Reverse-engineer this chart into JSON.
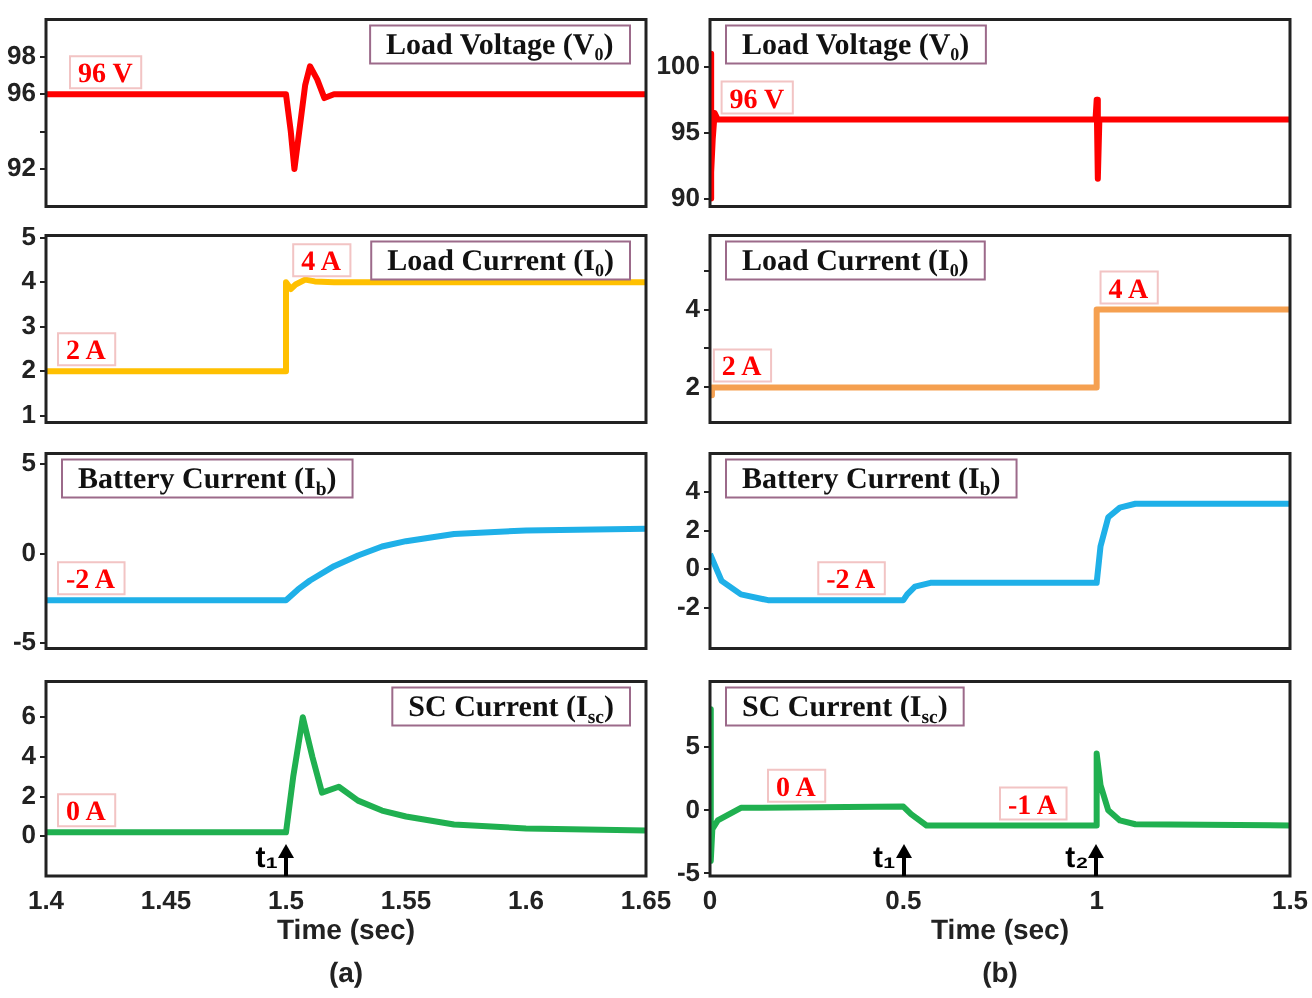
{
  "chart_data": [
    {
      "type": "line",
      "title": "Load Voltage (V₀)",
      "x": [
        1.4,
        1.5,
        1.502,
        1.5035,
        1.505,
        1.508,
        1.51,
        1.513,
        1.516,
        1.52,
        1.525,
        1.65
      ],
      "series": [
        {
          "color": "#ff0000",
          "values": [
            96,
            96,
            94,
            92,
            93.5,
            96.5,
            97.5,
            96.8,
            95.8,
            96,
            96,
            96
          ]
        }
      ],
      "xlim": [
        1.4,
        1.65
      ],
      "xticks": [
        1.4,
        1.45,
        1.5,
        1.55,
        1.6,
        1.65
      ],
      "ylim": [
        90,
        100
      ],
      "yticks": [
        92,
        {
          "value": 94,
          "label": null
        },
        96,
        98
      ],
      "tick_labels": "y",
      "annotations": [
        {
          "text": "96 V",
          "x": 1.41,
          "y": 96
        }
      ]
    },
    {
      "type": "line",
      "title": "Load Voltage (V₀)",
      "x": [
        0,
        0.002,
        0.004,
        0.007,
        0.012,
        0.02,
        0.997,
        1.0,
        1.003,
        1.007,
        1.5
      ],
      "series": [
        {
          "color": "#ff0000",
          "values": [
            90,
            101,
            92,
            94.5,
            96.5,
            96,
            96,
            97.5,
            91.5,
            96,
            96
          ]
        }
      ],
      "xlim": [
        0,
        1.5
      ],
      "xticks": [
        0,
        0.5,
        1,
        1.5
      ],
      "ylim": [
        89.4,
        103.6
      ],
      "yticks": [
        90,
        95,
        100
      ],
      "tick_labels": "y",
      "annotations": [
        {
          "text": "96 V",
          "x": 0.03,
          "y": 96
        }
      ]
    },
    {
      "type": "line",
      "title": "Load Current (I₀)",
      "x": [
        1.4,
        1.5,
        1.5,
        1.502,
        1.504,
        1.508,
        1.512,
        1.52,
        1.65
      ],
      "series": [
        {
          "color": "#ffc000",
          "values": [
            2,
            2,
            4,
            3.85,
            3.95,
            4.06,
            4.02,
            4,
            4
          ]
        }
      ],
      "xlim": [
        1.4,
        1.65
      ],
      "xticks": [
        1.4,
        1.45,
        1.5,
        1.55,
        1.6,
        1.65
      ],
      "ylim": [
        0.85,
        5.05
      ],
      "yticks": [
        1,
        2,
        3,
        4,
        5
      ],
      "tick_labels": "y",
      "annotations": [
        {
          "text": "2 A",
          "x": 1.405,
          "y": 2
        },
        {
          "text": "4 A",
          "x": 1.503,
          "y": 4
        }
      ]
    },
    {
      "type": "line",
      "title": "Load Current (I₀)",
      "x": [
        0,
        0.005,
        1.0,
        1.0,
        1.5
      ],
      "series": [
        {
          "color": "#f5a050",
          "values": [
            1.8,
            2,
            2,
            4,
            4
          ]
        }
      ],
      "xlim": [
        0,
        1.5
      ],
      "xticks": [
        0,
        0.5,
        1,
        1.5
      ],
      "ylim": [
        1.1,
        5.9
      ],
      "yticks": [
        2,
        {
          "value": 3,
          "label": null
        },
        4,
        {
          "value": 5,
          "label": null
        }
      ],
      "tick_labels": "y",
      "annotations": [
        {
          "text": "2 A",
          "x": 0.01,
          "y": 2
        },
        {
          "text": "4 A",
          "x": 1.01,
          "y": 4
        }
      ]
    },
    {
      "type": "line",
      "title": "Battery Current (I$_{b}$)",
      "x": [
        1.4,
        1.5,
        1.505,
        1.51,
        1.52,
        1.53,
        1.54,
        1.55,
        1.57,
        1.6,
        1.65
      ],
      "series": [
        {
          "color": "#1fb0e8",
          "values": [
            -2.6,
            -2.6,
            -2,
            -1.5,
            -0.7,
            -0.1,
            0.4,
            0.7,
            1.1,
            1.3,
            1.4
          ]
        }
      ],
      "xlim": [
        1.4,
        1.65
      ],
      "xticks": [
        1.4,
        1.45,
        1.5,
        1.55,
        1.6,
        1.65
      ],
      "ylim": [
        -5.3,
        5.6
      ],
      "yticks": [
        -5,
        0,
        5
      ],
      "tick_labels": "y",
      "annotations": [
        {
          "text": "-2 A",
          "x": 1.405,
          "y": -2.6
        }
      ]
    },
    {
      "type": "line",
      "title": "Battery Current (I$_{b}$)",
      "x": [
        0,
        0.03,
        0.08,
        0.15,
        0.5,
        0.51,
        0.53,
        0.57,
        1.0,
        1.01,
        1.03,
        1.06,
        1.1,
        1.5
      ],
      "series": [
        {
          "color": "#1fb0e8",
          "values": [
            0.8,
            -0.6,
            -1.3,
            -1.6,
            -1.6,
            -1.3,
            -0.9,
            -0.7,
            -0.7,
            1.2,
            2.7,
            3.2,
            3.4,
            3.4
          ]
        }
      ],
      "xlim": [
        0,
        1.5
      ],
      "xticks": [
        0,
        0.5,
        1,
        1.5
      ],
      "ylim": [
        -4.1,
        6
      ],
      "yticks": [
        -2,
        0,
        2,
        4
      ],
      "tick_labels": "y",
      "annotations": [
        {
          "text": "-2 A",
          "x": 0.28,
          "y": -1.6
        }
      ]
    },
    {
      "type": "line",
      "title": "SC Current (I$_{sc}$)",
      "x": [
        1.4,
        1.5,
        1.503,
        1.507,
        1.511,
        1.515,
        1.522,
        1.53,
        1.54,
        1.55,
        1.57,
        1.6,
        1.65
      ],
      "series": [
        {
          "color": "#20b050",
          "values": [
            0.2,
            0.2,
            3,
            6,
            4,
            2.2,
            2.5,
            1.8,
            1.3,
            1,
            0.6,
            0.4,
            0.3
          ]
        }
      ],
      "xlim": [
        1.4,
        1.65
      ],
      "xticks": [
        1.4,
        1.45,
        1.5,
        1.55,
        1.6,
        1.65
      ],
      "ylim": [
        -2,
        7.8
      ],
      "yticks": [
        0,
        2,
        4,
        6
      ],
      "xlabel": "Time (sec)",
      "annotations": [
        {
          "text": "0 A",
          "x": 1.405,
          "y": 0.2
        },
        {
          "text": "t₁",
          "x": 1.5,
          "y": 0.2
        },
        "(a)"
      ]
    },
    {
      "type": "line",
      "title": "SC Current (I$_{sc}$)",
      "x": [
        0,
        0.002,
        0.006,
        0.02,
        0.08,
        0.5,
        0.52,
        0.56,
        0.6,
        1.0,
        1.0,
        1.01,
        1.03,
        1.06,
        1.1,
        1.5
      ],
      "series": [
        {
          "color": "#20b050",
          "values": [
            8,
            -4,
            -1.5,
            -0.8,
            0.2,
            0.3,
            -0.3,
            -1.2,
            -1.2,
            -1.2,
            4.5,
            2,
            0,
            -0.8,
            -1.1,
            -1.2
          ]
        }
      ],
      "xlim": [
        0,
        1.5
      ],
      "xticks": [
        0,
        0.5,
        1,
        1.5
      ],
      "ylim": [
        -5.2,
        10.2
      ],
      "yticks": [
        -5,
        0,
        5
      ],
      "xlabel": "Time (sec)",
      "annotations": [
        {
          "text": "0 A",
          "x": 0.15,
          "y": 0.2
        },
        {
          "text": "-1 A",
          "x": 0.75,
          "y": -1.2
        },
        {
          "text": "t₁",
          "x": 0.5,
          "y": 0.3
        },
        {
          "text": "t₂",
          "x": 1.0,
          "y": -1.2
        },
        "(b)"
      ]
    }
  ]
}
